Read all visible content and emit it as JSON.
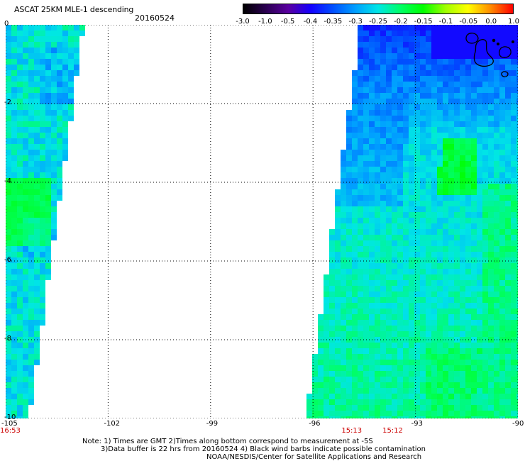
{
  "header": {
    "title": "ASCAT 25KM MLE-1 descending",
    "date": "20160524"
  },
  "colorbar": {
    "ticks": [
      "-3.0",
      "-1.0",
      "-0.5",
      "-0.4",
      "-0.35",
      "-0.3",
      "-0.25",
      "-0.2",
      "-0.15",
      "-0.1",
      "-0.05",
      "0.0",
      "1.0"
    ],
    "colors": [
      "#000000",
      "#2a0050",
      "#5a00a0",
      "#1400ff",
      "#0050ff",
      "#00a0ff",
      "#00e6e6",
      "#00ff66",
      "#00ff00",
      "#a0ff00",
      "#ffff00",
      "#ff8c00",
      "#ff0000"
    ]
  },
  "map": {
    "lon_ticks": [
      "-105",
      "-102",
      "-99",
      "-96",
      "-93",
      "-90"
    ],
    "lat_ticks": [
      "0",
      "-2",
      "-4",
      "-6",
      "-8",
      "-10"
    ],
    "lon_range": [
      -105,
      -90
    ],
    "lat_range": [
      -10,
      0
    ],
    "grid": "dotted",
    "swath_west": {
      "lon_east_edge_top": -102.8,
      "lon_east_edge_bottom": -104.4
    },
    "swath_east": {
      "lon_west_edge_top": -94.7,
      "lon_west_edge_bottom": -96.3
    }
  },
  "pass_times": [
    {
      "label": "16:53",
      "lon": -105
    },
    {
      "label": "15:13",
      "lon": -95
    },
    {
      "label": "15:12",
      "lon": -93.8
    }
  ],
  "notes": [
    "Note: 1) Times are GMT 2)Times along bottom correspond to measurement at -5S",
    "3)Data buffer is 22 hrs from 20160524 4) Black wind barbs indicate possible contamination",
    "NOAA/NESDIS/Center for Satellite Applications and Research"
  ]
}
